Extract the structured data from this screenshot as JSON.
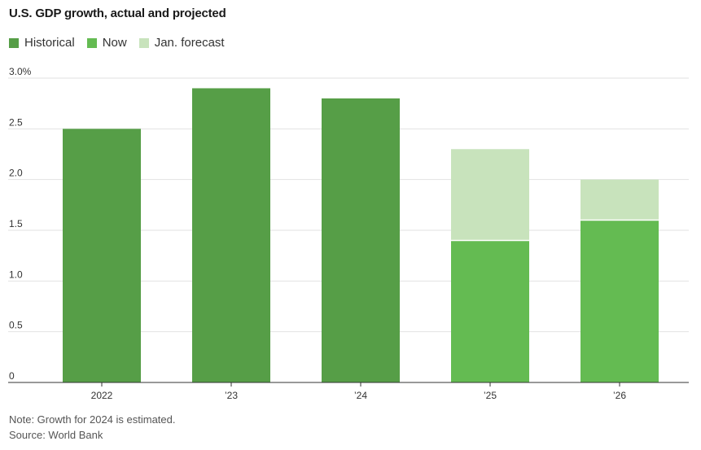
{
  "chart_data": {
    "type": "bar",
    "title": "U.S. GDP growth, actual and projected",
    "categories": [
      "2022",
      "’23",
      "’24",
      "’25",
      "’26"
    ],
    "series": [
      {
        "name": "Historical",
        "color": "#569e47",
        "values": [
          2.5,
          2.9,
          2.8,
          null,
          null
        ]
      },
      {
        "name": "Now",
        "color": "#64bb52",
        "values": [
          null,
          null,
          null,
          1.4,
          1.6
        ]
      },
      {
        "name": "Jan. forecast",
        "color": "#c8e3bc",
        "values": [
          null,
          null,
          null,
          2.3,
          2.0
        ]
      }
    ],
    "y_ticks": [
      {
        "value": 0,
        "label": "0"
      },
      {
        "value": 0.5,
        "label": "0.5"
      },
      {
        "value": 1.0,
        "label": "1.0"
      },
      {
        "value": 1.5,
        "label": "1.5"
      },
      {
        "value": 2.0,
        "label": "2.0"
      },
      {
        "value": 2.5,
        "label": "2.5"
      },
      {
        "value": 3.0,
        "label": "3.0%"
      }
    ],
    "ylim": [
      0,
      3.0
    ],
    "grid": true,
    "legend": "top-left",
    "xlabel": "",
    "ylabel": ""
  },
  "footer": {
    "note": "Note: Growth for 2024 is estimated.",
    "source": "Source: World Bank"
  }
}
